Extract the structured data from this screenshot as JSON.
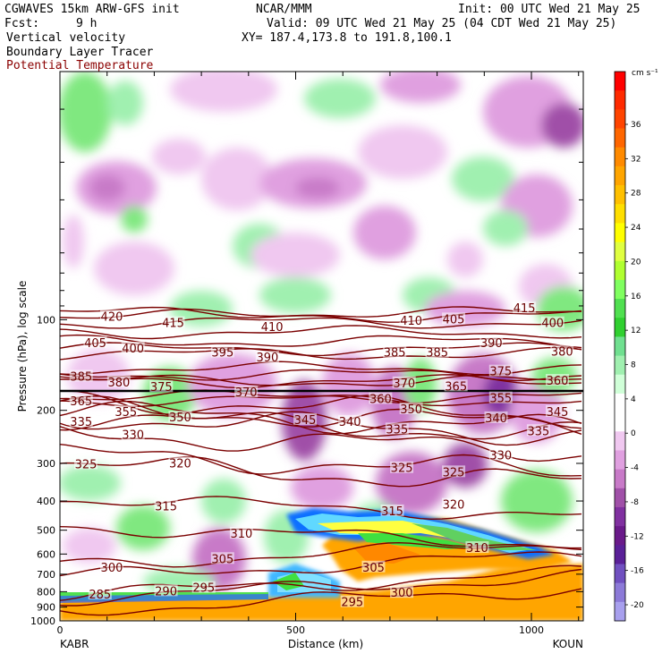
{
  "header": {
    "model": "CGWAVES 15km ARW-GFS init",
    "fcst_label": "Fcst:",
    "fcst_value": "9 h",
    "center": "NCAR/MMM",
    "init": "Init: 00 UTC Wed 21 May 25",
    "valid": "Valid: 09 UTC Wed 21 May 25 (04 CDT Wed 21 May 25)",
    "xy": "XY= 187.4,173.8 to 191.8,100.1",
    "field1": "Vertical velocity",
    "field2": "Boundary Layer Tracer",
    "field3": "Potential Temperature"
  },
  "colors": {
    "theta": "#7a0000",
    "tropopause": "#000000"
  },
  "chart_data": {
    "type": "heatmap",
    "xlabel": "Distance (km)",
    "ylabel": "Pressure (hPa), log scale",
    "x_ticks": [
      0,
      500,
      1000
    ],
    "x_minor_ticks": [
      100,
      200,
      300,
      400,
      600,
      700,
      800,
      900,
      1100
    ],
    "xlim": [
      0,
      1110
    ],
    "y_ticks": [
      100,
      200,
      300,
      400,
      500,
      600,
      700,
      800,
      900,
      1000
    ],
    "ylim": [
      1000,
      15
    ],
    "y_scale": "log",
    "left_endpoint": "KABR",
    "right_endpoint": "KOUN",
    "colorbar": {
      "unit": "cm s⁻¹",
      "labels": [
        36,
        32,
        28,
        24,
        20,
        16,
        12,
        8,
        4,
        0,
        -4,
        -8,
        -12,
        -16,
        -20
      ],
      "colors": [
        "#ff0000",
        "#ff2a00",
        "#ff4400",
        "#ff6600",
        "#ff8a00",
        "#ffa500",
        "#ffc000",
        "#ffdf00",
        "#ffff00",
        "#e0ff40",
        "#b0ff30",
        "#80ff60",
        "#50e050",
        "#30d030",
        "#70e090",
        "#a0f0b0",
        "#d0ffd8",
        "#ffffff",
        "#ffffff",
        "#f0c8f0",
        "#e0a0e0",
        "#c87ac8",
        "#a050a8",
        "#8030a0",
        "#6a1a8a",
        "#5a2098",
        "#7050c0",
        "#8c7ad8",
        "#a8a0ee"
      ]
    },
    "theta_contours": [
      {
        "value": 285,
        "p": 880
      },
      {
        "value": 290,
        "p": 800
      },
      {
        "value": 295,
        "p": 780
      },
      {
        "value": 300,
        "p": 680
      },
      {
        "value": 305,
        "p": 620
      },
      {
        "value": 310,
        "p": 520
      },
      {
        "value": 315,
        "p": 420
      },
      {
        "value": 320,
        "p": 325
      },
      {
        "value": 325,
        "p": 300
      },
      {
        "value": 330,
        "p": 255
      },
      {
        "value": 335,
        "p": 225
      },
      {
        "value": 340,
        "p": 225
      },
      {
        "value": 345,
        "p": 215
      },
      {
        "value": 350,
        "p": 210
      },
      {
        "value": 355,
        "p": 195
      },
      {
        "value": 360,
        "p": 185
      },
      {
        "value": 365,
        "p": 180
      },
      {
        "value": 370,
        "p": 160
      },
      {
        "value": 375,
        "p": 160
      },
      {
        "value": 380,
        "p": 152
      },
      {
        "value": 385,
        "p": 145
      },
      {
        "value": 390,
        "p": 130
      },
      {
        "value": 395,
        "p": 125
      },
      {
        "value": 400,
        "p": 118
      },
      {
        "value": 405,
        "p": 110
      },
      {
        "value": 410,
        "p": 102
      },
      {
        "value": 415,
        "p": 97
      },
      {
        "value": 420,
        "p": 95
      }
    ],
    "theta_labels": [
      {
        "text": "420",
        "x": 110,
        "p": 98
      },
      {
        "text": "415",
        "x": 240,
        "p": 103
      },
      {
        "text": "410",
        "x": 450,
        "p": 106
      },
      {
        "text": "410",
        "x": 745,
        "p": 101
      },
      {
        "text": "405",
        "x": 835,
        "p": 100
      },
      {
        "text": "415",
        "x": 985,
        "p": 92
      },
      {
        "text": "400",
        "x": 1045,
        "p": 103
      },
      {
        "text": "405",
        "x": 75,
        "p": 120
      },
      {
        "text": "400",
        "x": 155,
        "p": 125
      },
      {
        "text": "395",
        "x": 345,
        "p": 129
      },
      {
        "text": "390",
        "x": 440,
        "p": 134
      },
      {
        "text": "385",
        "x": 710,
        "p": 129
      },
      {
        "text": "385",
        "x": 800,
        "p": 129
      },
      {
        "text": "390",
        "x": 915,
        "p": 120
      },
      {
        "text": "380",
        "x": 1065,
        "p": 128
      },
      {
        "text": "385",
        "x": 45,
        "p": 155
      },
      {
        "text": "380",
        "x": 125,
        "p": 162
      },
      {
        "text": "375",
        "x": 215,
        "p": 168
      },
      {
        "text": "370",
        "x": 395,
        "p": 175
      },
      {
        "text": "370",
        "x": 730,
        "p": 163
      },
      {
        "text": "365",
        "x": 840,
        "p": 167
      },
      {
        "text": "375",
        "x": 935,
        "p": 149
      },
      {
        "text": "360",
        "x": 1055,
        "p": 160
      },
      {
        "text": "365",
        "x": 45,
        "p": 187
      },
      {
        "text": "360",
        "x": 680,
        "p": 184
      },
      {
        "text": "355",
        "x": 140,
        "p": 203
      },
      {
        "text": "350",
        "x": 255,
        "p": 212
      },
      {
        "text": "350",
        "x": 745,
        "p": 199
      },
      {
        "text": "355",
        "x": 935,
        "p": 183
      },
      {
        "text": "345",
        "x": 520,
        "p": 216
      },
      {
        "text": "340",
        "x": 615,
        "p": 219
      },
      {
        "text": "345",
        "x": 1055,
        "p": 203
      },
      {
        "text": "335",
        "x": 45,
        "p": 219
      },
      {
        "text": "335",
        "x": 715,
        "p": 232
      },
      {
        "text": "340",
        "x": 925,
        "p": 213
      },
      {
        "text": "335",
        "x": 1015,
        "p": 235
      },
      {
        "text": "330",
        "x": 155,
        "p": 242
      },
      {
        "text": "330",
        "x": 935,
        "p": 283
      },
      {
        "text": "325",
        "x": 55,
        "p": 303
      },
      {
        "text": "320",
        "x": 255,
        "p": 301
      },
      {
        "text": "325",
        "x": 725,
        "p": 312
      },
      {
        "text": "325",
        "x": 835,
        "p": 322
      },
      {
        "text": "315",
        "x": 225,
        "p": 418
      },
      {
        "text": "315",
        "x": 705,
        "p": 434
      },
      {
        "text": "320",
        "x": 835,
        "p": 413
      },
      {
        "text": "310",
        "x": 385,
        "p": 515
      },
      {
        "text": "310",
        "x": 885,
        "p": 575
      },
      {
        "text": "305",
        "x": 345,
        "p": 625
      },
      {
        "text": "305",
        "x": 665,
        "p": 667
      },
      {
        "text": "300",
        "x": 110,
        "p": 668
      },
      {
        "text": "295",
        "x": 305,
        "p": 780
      },
      {
        "text": "290",
        "x": 225,
        "p": 800
      },
      {
        "text": "300",
        "x": 725,
        "p": 810
      },
      {
        "text": "285",
        "x": 85,
        "p": 820
      },
      {
        "text": "295",
        "x": 620,
        "p": 870
      }
    ]
  }
}
